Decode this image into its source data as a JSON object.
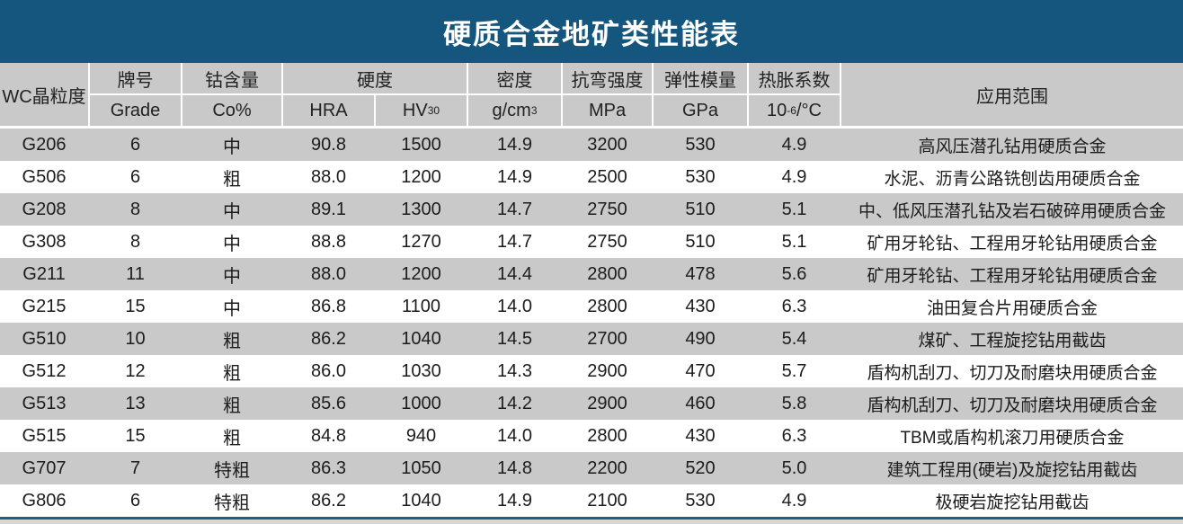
{
  "title": "硬质合金地矿类性能表",
  "colors": {
    "title_bar_background": "#14567d",
    "title_text": "#ffffff",
    "header_cell_gray": "#c9c9c9",
    "row_stripe_gray": "#c9c9c9",
    "row_stripe_white": "#ffffff",
    "bottom_line_blue": "#1c608a",
    "bottom_strip_gray": "#d8d8d8",
    "body_text": "#1c1c1c"
  },
  "table": {
    "header": {
      "grade_cn": "牌号",
      "grade_en": "Grade",
      "co_cn": "钴含量",
      "co_en": "Co%",
      "wc_grain": "WC晶粒度",
      "hardness_group": "硬度",
      "hra": "HRA",
      "hv_base": "HV",
      "hv_sub": "30",
      "density_cn": "密度",
      "density_unit_base": "g/cm",
      "density_unit_sup": "3",
      "tbs_cn": "抗弯强度",
      "tbs_unit": "MPa",
      "modulus_cn": "弹性模量",
      "modulus_unit": "GPa",
      "cte_cn": "热胀系数",
      "cte_unit_base": "10",
      "cte_unit_sup": "-6",
      "cte_unit_rest": "/°C",
      "application": "应用范围"
    },
    "rows": [
      {
        "grade": "G206",
        "co": "6",
        "wc": "中",
        "hra": "90.8",
        "hv": "1500",
        "density": "14.9",
        "tbs": "3200",
        "modulus": "530",
        "cte": "4.9",
        "application": "高风压潜孔钻用硬质合金"
      },
      {
        "grade": "G506",
        "co": "6",
        "wc": "粗",
        "hra": "88.0",
        "hv": "1200",
        "density": "14.9",
        "tbs": "2500",
        "modulus": "530",
        "cte": "4.9",
        "application": "水泥、沥青公路铣刨齿用硬质合金"
      },
      {
        "grade": "G208",
        "co": "8",
        "wc": "中",
        "hra": "89.1",
        "hv": "1300",
        "density": "14.7",
        "tbs": "2750",
        "modulus": "510",
        "cte": "5.1",
        "application": "中、低风压潜孔钻及岩石破碎用硬质合金"
      },
      {
        "grade": "G308",
        "co": "8",
        "wc": "中",
        "hra": "88.8",
        "hv": "1270",
        "density": "14.7",
        "tbs": "2750",
        "modulus": "510",
        "cte": "5.1",
        "application": "矿用牙轮钻、工程用牙轮钻用硬质合金"
      },
      {
        "grade": "G211",
        "co": "11",
        "wc": "中",
        "hra": "88.0",
        "hv": "1200",
        "density": "14.4",
        "tbs": "2800",
        "modulus": "478",
        "cte": "5.6",
        "application": "矿用牙轮钻、工程用牙轮钻用硬质合金"
      },
      {
        "grade": "G215",
        "co": "15",
        "wc": "中",
        "hra": "86.8",
        "hv": "1100",
        "density": "14.0",
        "tbs": "2800",
        "modulus": "430",
        "cte": "6.3",
        "application": "油田复合片用硬质合金"
      },
      {
        "grade": "G510",
        "co": "10",
        "wc": "粗",
        "hra": "86.2",
        "hv": "1040",
        "density": "14.5",
        "tbs": "2700",
        "modulus": "490",
        "cte": "5.4",
        "application": "煤矿、工程旋挖钻用截齿"
      },
      {
        "grade": "G512",
        "co": "12",
        "wc": "粗",
        "hra": "86.0",
        "hv": "1030",
        "density": "14.3",
        "tbs": "2900",
        "modulus": "470",
        "cte": "5.7",
        "application": "盾构机刮刀、切刀及耐磨块用硬质合金"
      },
      {
        "grade": "G513",
        "co": "13",
        "wc": "粗",
        "hra": "85.6",
        "hv": "1000",
        "density": "14.2",
        "tbs": "2900",
        "modulus": "460",
        "cte": "5.8",
        "application": "盾构机刮刀、切刀及耐磨块用硬质合金"
      },
      {
        "grade": "G515",
        "co": "15",
        "wc": "粗",
        "hra": "84.8",
        "hv": "940",
        "density": "14.0",
        "tbs": "2800",
        "modulus": "430",
        "cte": "6.3",
        "application": "TBM或盾构机滚刀用硬质合金"
      },
      {
        "grade": "G707",
        "co": "7",
        "wc": "特粗",
        "hra": "86.3",
        "hv": "1050",
        "density": "14.8",
        "tbs": "2200",
        "modulus": "520",
        "cte": "5.0",
        "application": "建筑工程用(硬岩)及旋挖钻用截齿"
      },
      {
        "grade": "G806",
        "co": "6",
        "wc": "特粗",
        "hra": "86.2",
        "hv": "1040",
        "density": "14.9",
        "tbs": "2100",
        "modulus": "530",
        "cte": "4.9",
        "application": "极硬岩旋挖钻用截齿"
      }
    ]
  }
}
